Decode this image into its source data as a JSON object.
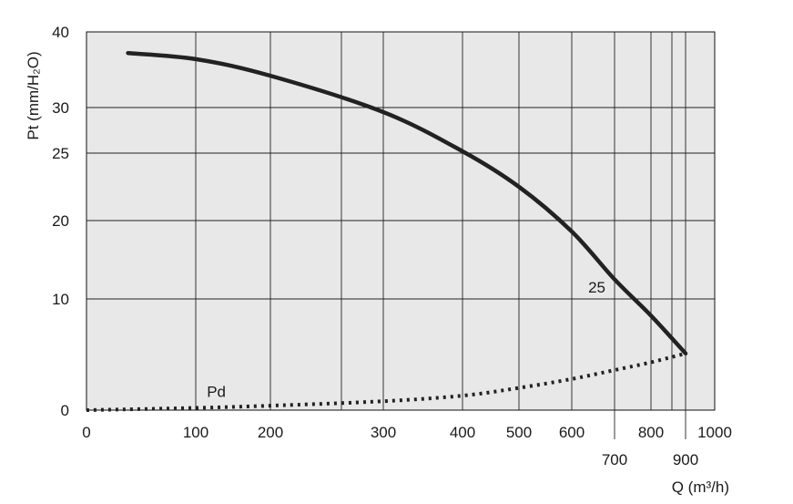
{
  "chart_data": {
    "type": "line",
    "title": "",
    "xlabel": "Q (m³/h)",
    "ylabel": "Pt (mm/H₂O)",
    "x_scale": "custom-nonlinear",
    "y_scale": "custom-nonlinear",
    "xlim": [
      0,
      1000
    ],
    "ylim": [
      0,
      40
    ],
    "grid": true,
    "background": "#e8e8e8",
    "x_ticks": [
      0,
      100,
      200,
      300,
      400,
      500,
      600,
      700,
      800,
      900,
      1000
    ],
    "x_tick_labels": [
      "0",
      "100",
      "200",
      "300",
      "400",
      "500",
      "600",
      "700",
      "800",
      "900",
      "1000"
    ],
    "y_ticks": [
      0,
      10,
      20,
      25,
      30,
      40
    ],
    "y_tick_labels": [
      "0",
      "10",
      "20",
      "25",
      "30",
      "40"
    ],
    "series": [
      {
        "name": "25",
        "style": "solid",
        "color": "#222222",
        "points": [
          [
            38,
            37.2
          ],
          [
            100,
            36.4
          ],
          [
            200,
            34.2
          ],
          [
            300,
            29.5
          ],
          [
            400,
            25.2
          ],
          [
            500,
            22.5
          ],
          [
            600,
            18.6
          ],
          [
            700,
            12.5
          ],
          [
            800,
            8.5
          ],
          [
            900,
            5.1
          ]
        ]
      },
      {
        "name": "Pd",
        "style": "dotted",
        "color": "#222222",
        "points": [
          [
            0,
            0
          ],
          [
            100,
            0.2
          ],
          [
            200,
            0.4
          ],
          [
            300,
            0.8
          ],
          [
            400,
            1.3
          ],
          [
            500,
            2.0
          ],
          [
            600,
            2.8
          ],
          [
            700,
            3.6
          ],
          [
            800,
            4.3
          ],
          [
            900,
            5.1
          ]
        ]
      }
    ],
    "annotations": [
      {
        "text": "25",
        "at_x": 630,
        "at_y": 11.5
      },
      {
        "text": "Pd",
        "at_x": 110,
        "at_y": 1.7
      }
    ]
  }
}
